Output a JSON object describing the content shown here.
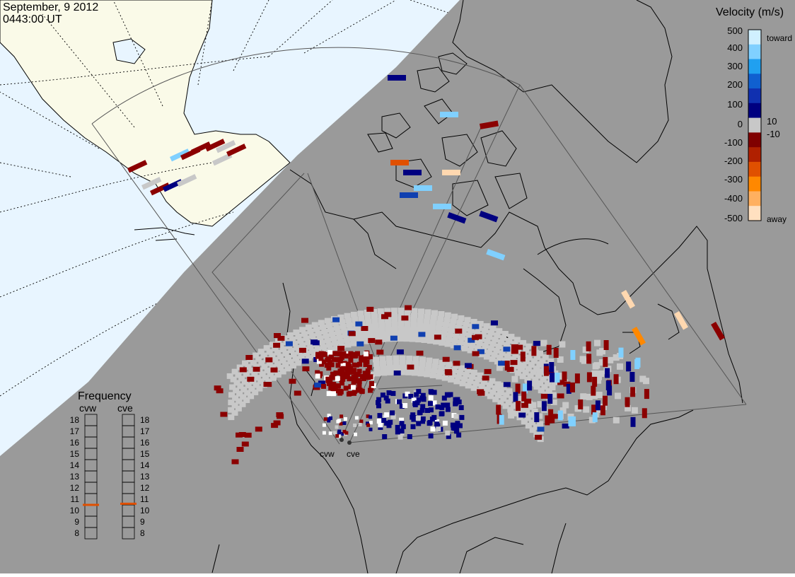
{
  "header": {
    "date": "September, 9 2012",
    "time": "0443:00 UT"
  },
  "velocity_scale": {
    "title": "Velocity (m/s)",
    "tick_labels": [
      "500",
      "400",
      "300",
      "200",
      "100",
      "10",
      "0",
      "-10",
      "-100",
      "-200",
      "-300",
      "-400",
      "-500"
    ],
    "toward_label": "toward",
    "away_label": "away",
    "colors": [
      "#ffe0c0",
      "#ffb060",
      "#ff8800",
      "#e05000",
      "#b02000",
      "#800000",
      "#c8c8c8",
      "#000080",
      "#1030b0",
      "#1060d0",
      "#20a0f0",
      "#80d0ff",
      "#d0f0ff"
    ]
  },
  "frequency_panel": {
    "title": "Frequency",
    "units_note": "",
    "radars": [
      {
        "name": "cvw",
        "selected_mhz": 10.5
      },
      {
        "name": "cve",
        "selected_mhz": 10.6
      }
    ],
    "tick_labels": [
      "18",
      "17",
      "16",
      "15",
      "14",
      "13",
      "12",
      "11",
      "10",
      "9",
      "8"
    ],
    "marker_color": "#e05000"
  },
  "map": {
    "radar_sites": [
      {
        "label": "cvw"
      },
      {
        "label": "cve"
      }
    ],
    "colors": {
      "night": "#9a9a9a",
      "day_ocean": "#e8f5ff",
      "day_land": "#fafae8",
      "ground_scatter": "#c8c8c8",
      "coast": "#000000"
    }
  }
}
